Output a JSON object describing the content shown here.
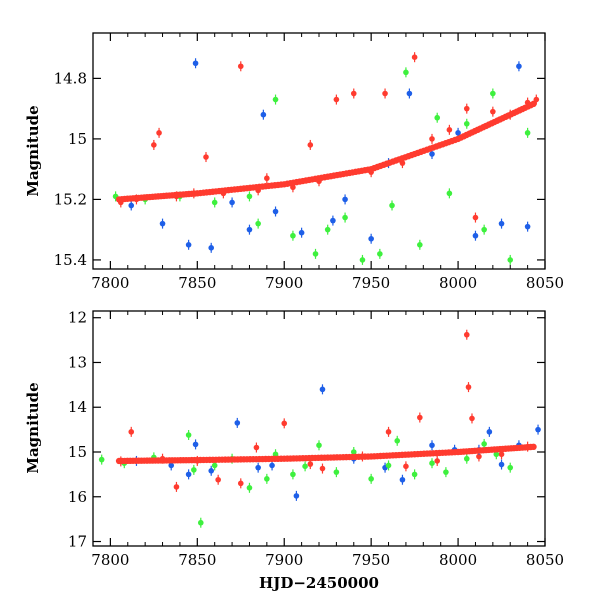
{
  "chart_data": [
    {
      "type": "scatter",
      "panel": "top",
      "title": "",
      "xlabel": "",
      "ylabel": "Magnitude",
      "xlim": [
        7790,
        8050
      ],
      "ylim": [
        15.43,
        14.65
      ],
      "y_inverted": true,
      "grid": false,
      "xticks": [
        7800,
        7850,
        7900,
        7950,
        8000,
        8050
      ],
      "yticks": [
        14.8,
        15,
        15.2,
        15.4
      ],
      "ytick_labels": [
        "14.8",
        "15",
        "15.2",
        "15.4"
      ],
      "trend": {
        "x": [
          7805,
          7850,
          7900,
          7950,
          8000,
          8045
        ],
        "y": [
          15.2,
          15.18,
          15.15,
          15.1,
          15.0,
          14.88
        ]
      },
      "series": [
        {
          "color": "#ff3b2f",
          "values": [
            [
              7806,
              15.21
            ],
            [
              7815,
              15.2
            ],
            [
              7825,
              15.02
            ],
            [
              7828,
              14.98
            ],
            [
              7838,
              15.19
            ],
            [
              7848,
              15.18
            ],
            [
              7855,
              15.06
            ],
            [
              7865,
              15.18
            ],
            [
              7875,
              14.76
            ],
            [
              7885,
              15.17
            ],
            [
              7890,
              15.13
            ],
            [
              7905,
              15.16
            ],
            [
              7915,
              15.02
            ],
            [
              7920,
              15.14
            ],
            [
              7930,
              14.87
            ],
            [
              7940,
              14.85
            ],
            [
              7950,
              15.11
            ],
            [
              7958,
              14.85
            ],
            [
              7968,
              15.08
            ],
            [
              7975,
              14.73
            ],
            [
              7985,
              15.0
            ],
            [
              7995,
              14.97
            ],
            [
              8005,
              14.9
            ],
            [
              8010,
              15.26
            ],
            [
              8020,
              14.91
            ],
            [
              8030,
              14.92
            ],
            [
              8040,
              14.88
            ],
            [
              8045,
              14.87
            ]
          ]
        },
        {
          "color": "#1e5fe8",
          "values": [
            [
              7812,
              15.22
            ],
            [
              7830,
              15.28
            ],
            [
              7845,
              15.35
            ],
            [
              7849,
              14.75
            ],
            [
              7858,
              15.36
            ],
            [
              7870,
              15.21
            ],
            [
              7880,
              15.3
            ],
            [
              7888,
              14.92
            ],
            [
              7895,
              15.24
            ],
            [
              7910,
              15.31
            ],
            [
              7928,
              15.27
            ],
            [
              7935,
              15.2
            ],
            [
              7950,
              15.33
            ],
            [
              7960,
              15.08
            ],
            [
              7972,
              14.85
            ],
            [
              7985,
              15.05
            ],
            [
              8000,
              14.98
            ],
            [
              8010,
              15.32
            ],
            [
              8025,
              15.28
            ],
            [
              8035,
              14.76
            ],
            [
              8040,
              15.29
            ]
          ]
        },
        {
          "color": "#3ef03e",
          "values": [
            [
              7803,
              15.19
            ],
            [
              7820,
              15.2
            ],
            [
              7840,
              15.19
            ],
            [
              7860,
              15.21
            ],
            [
              7880,
              15.19
            ],
            [
              7885,
              15.28
            ],
            [
              7895,
              14.87
            ],
            [
              7905,
              15.32
            ],
            [
              7918,
              15.38
            ],
            [
              7925,
              15.3
            ],
            [
              7935,
              15.26
            ],
            [
              7945,
              15.4
            ],
            [
              7955,
              15.38
            ],
            [
              7962,
              15.22
            ],
            [
              7970,
              14.78
            ],
            [
              7978,
              15.35
            ],
            [
              7988,
              14.93
            ],
            [
              7995,
              15.18
            ],
            [
              8005,
              14.95
            ],
            [
              8015,
              15.3
            ],
            [
              8020,
              14.85
            ],
            [
              8030,
              15.4
            ],
            [
              8040,
              14.98
            ]
          ]
        }
      ]
    },
    {
      "type": "scatter",
      "panel": "bottom",
      "title": "",
      "xlabel": "HJD−2450000",
      "ylabel": "Magnitude",
      "xlim": [
        7790,
        8050
      ],
      "ylim": [
        17.1,
        11.85
      ],
      "y_inverted": true,
      "grid": false,
      "xticks": [
        7800,
        7850,
        7900,
        7950,
        8000,
        8050
      ],
      "yticks": [
        12,
        13,
        14,
        15,
        16,
        17
      ],
      "ytick_labels": [
        "12",
        "13",
        "14",
        "15",
        "16",
        "17"
      ],
      "trend": {
        "x": [
          7805,
          7850,
          7900,
          7950,
          8000,
          8045
        ],
        "y": [
          15.2,
          15.18,
          15.15,
          15.1,
          15.0,
          14.88
        ]
      },
      "series": [
        {
          "color": "#ff3b2f",
          "values": [
            [
              7806,
              15.21
            ],
            [
              7812,
              14.55
            ],
            [
              7830,
              15.15
            ],
            [
              7838,
              15.78
            ],
            [
              7850,
              15.2
            ],
            [
              7862,
              15.62
            ],
            [
              7875,
              15.7
            ],
            [
              7884,
              14.9
            ],
            [
              7895,
              15.1
            ],
            [
              7900,
              14.36
            ],
            [
              7915,
              15.27
            ],
            [
              7922,
              15.37
            ],
            [
              7945,
              15.1
            ],
            [
              7960,
              14.55
            ],
            [
              7970,
              15.32
            ],
            [
              7978,
              14.23
            ],
            [
              7988,
              15.2
            ],
            [
              8005,
              12.38
            ],
            [
              8006,
              13.55
            ],
            [
              8008,
              14.25
            ],
            [
              8012,
              15.1
            ],
            [
              8025,
              15.05
            ],
            [
              8040,
              14.88
            ]
          ]
        },
        {
          "color": "#1e5fe8",
          "values": [
            [
              7815,
              15.2
            ],
            [
              7835,
              15.3
            ],
            [
              7845,
              15.5
            ],
            [
              7849,
              14.83
            ],
            [
              7858,
              15.42
            ],
            [
              7873,
              14.35
            ],
            [
              7885,
              15.35
            ],
            [
              7893,
              15.3
            ],
            [
              7907,
              15.98
            ],
            [
              7922,
              13.6
            ],
            [
              7940,
              15.15
            ],
            [
              7958,
              15.35
            ],
            [
              7968,
              15.62
            ],
            [
              7985,
              14.85
            ],
            [
              7998,
              14.95
            ],
            [
              8012,
              14.95
            ],
            [
              8018,
              14.55
            ],
            [
              8025,
              15.28
            ],
            [
              8035,
              14.85
            ],
            [
              8046,
              14.5
            ]
          ]
        },
        {
          "color": "#3ef03e",
          "values": [
            [
              7795,
              15.17
            ],
            [
              7808,
              15.25
            ],
            [
              7825,
              15.12
            ],
            [
              7845,
              14.62
            ],
            [
              7848,
              15.4
            ],
            [
              7852,
              16.58
            ],
            [
              7860,
              15.3
            ],
            [
              7870,
              15.15
            ],
            [
              7880,
              15.8
            ],
            [
              7890,
              15.6
            ],
            [
              7895,
              15.05
            ],
            [
              7905,
              15.5
            ],
            [
              7912,
              15.32
            ],
            [
              7920,
              14.85
            ],
            [
              7930,
              15.45
            ],
            [
              7940,
              15.0
            ],
            [
              7950,
              15.6
            ],
            [
              7960,
              15.3
            ],
            [
              7965,
              14.75
            ],
            [
              7975,
              15.5
            ],
            [
              7985,
              15.25
            ],
            [
              7993,
              15.45
            ],
            [
              8005,
              15.15
            ],
            [
              8015,
              14.82
            ],
            [
              8022,
              15.05
            ],
            [
              8030,
              15.35
            ]
          ]
        }
      ]
    }
  ]
}
